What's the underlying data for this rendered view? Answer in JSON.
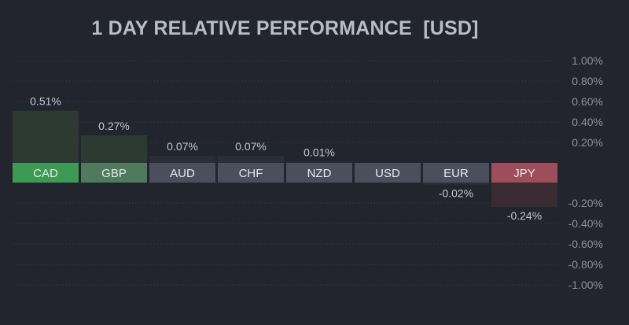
{
  "chart_data": {
    "type": "bar",
    "title": "1 DAY RELATIVE PERFORMANCE  [USD]",
    "categories": [
      "CAD",
      "GBP",
      "AUD",
      "CHF",
      "NZD",
      "USD",
      "EUR",
      "JPY"
    ],
    "values": [
      0.51,
      0.27,
      0.07,
      0.07,
      0.01,
      0.0,
      -0.02,
      -0.24
    ],
    "value_labels": [
      "0.51%",
      "0.27%",
      "0.07%",
      "0.07%",
      "0.01%",
      "",
      "-0.02%",
      "-0.24%"
    ],
    "y_ticks": [
      1.0,
      0.8,
      0.6,
      0.4,
      0.2,
      -0.2,
      -0.4,
      -0.6,
      -0.8,
      -1.0
    ],
    "y_tick_labels": [
      "1.00%",
      "0.80%",
      "0.60%",
      "0.40%",
      "0.20%",
      "-0.20%",
      "-0.40%",
      "-0.60%",
      "-0.80%",
      "-1.00%"
    ],
    "ylim": [
      -1.0,
      1.0
    ],
    "xlabel": "",
    "ylabel": "",
    "grid": true,
    "colors": {
      "background": "#22252d",
      "grid": "#3a3e48",
      "positive_strong": "#3d9a55",
      "positive_mid": "#4f7a5d",
      "neutral": "#4a4f5b",
      "negative_strong": "#9e4d5a",
      "positive_fill": "#2c3a33",
      "negative_fill": "#3a2a32"
    }
  }
}
